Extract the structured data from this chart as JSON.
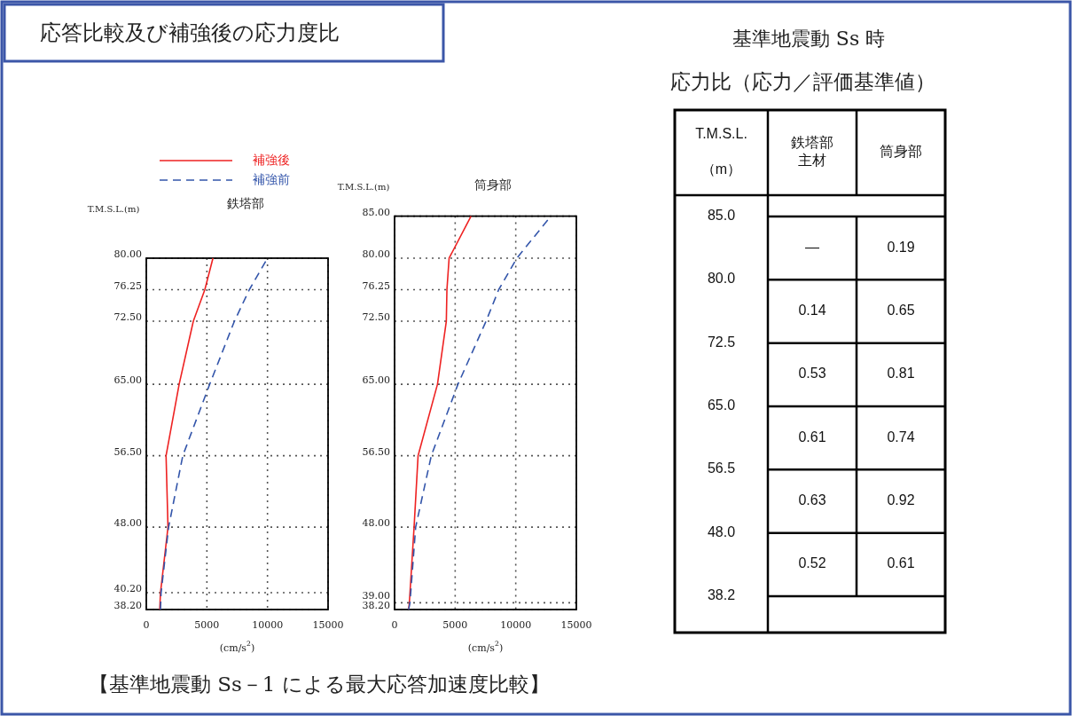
{
  "chart_data": [
    {
      "type": "line",
      "title": "鉄塔部",
      "xlabel": "(cm/s$^{2}$)",
      "ylabel": "T.M.S.L.(m)",
      "annotations": [
        "応答比較及び補強後の応力度比",
        "【基準地震動 Ss－1 による最大応答加速度比較】"
      ],
      "xlim": [
        0,
        15000
      ],
      "xticks": [
        0,
        5000,
        10000,
        15000
      ],
      "ylim": [
        38.2,
        80
      ],
      "yticks": [
        {
          "value": 38.2,
          "label": "38.20"
        },
        {
          "value": 40.2,
          "label": "40.20"
        },
        {
          "value": 48,
          "label": "48.00"
        },
        {
          "value": 56.5,
          "label": "56.50"
        },
        {
          "value": 65,
          "label": "65.00"
        },
        {
          "value": 72.5,
          "label": "72.50"
        },
        {
          "value": 76.25,
          "label": "76.25"
        },
        {
          "value": 80,
          "label": "80.00"
        }
      ],
      "grid": true,
      "legend": "top",
      "marker": "none",
      "series": [
        {
          "name": "補強後",
          "color": "#ee2222",
          "line_style": "solid",
          "x": [
            1110,
            1170,
            1790,
            1630,
            2710,
            3880,
            4830,
            5500
          ],
          "values": [
            38.2,
            40.2,
            48,
            56.5,
            65,
            72.5,
            76.25,
            80
          ]
        },
        {
          "name": "補強前",
          "color": "#3355aa",
          "line_style": "dashed",
          "x": [
            1170,
            1220,
            1840,
            3010,
            5230,
            7270,
            8500,
            10000
          ],
          "values": [
            38.2,
            40.2,
            48,
            56.5,
            65,
            72.5,
            76.25,
            80
          ]
        }
      ]
    },
    {
      "type": "line",
      "title": "筒身部",
      "xlabel": "(cm/s$^{2}$)",
      "ylabel": "T.M.S.L.(m)",
      "xlim": [
        0,
        15000
      ],
      "xticks": [
        0,
        5000,
        10000,
        15000
      ],
      "ylim": [
        38.2,
        85
      ],
      "yticks": [
        {
          "value": 38.2,
          "label": "38.20"
        },
        {
          "value": 39,
          "label": "39.00"
        },
        {
          "value": 48,
          "label": "48.00"
        },
        {
          "value": 56.5,
          "label": "56.50"
        },
        {
          "value": 65,
          "label": "65.00"
        },
        {
          "value": 72.5,
          "label": "72.50"
        },
        {
          "value": 76.25,
          "label": "76.25"
        },
        {
          "value": 80,
          "label": "80.00"
        },
        {
          "value": 85,
          "label": "85.00"
        }
      ],
      "grid": true,
      "marker": "none",
      "series": [
        {
          "color": "#ee2222",
          "line_style": "solid",
          "x": [
            1160,
            1220,
            1610,
            1940,
            3540,
            4270,
            4320,
            4500,
            6310
          ],
          "values": [
            38.2,
            39,
            48,
            56.5,
            65,
            72.5,
            76.25,
            80,
            85
          ]
        },
        {
          "color": "#3355aa",
          "line_style": "dashed",
          "x": [
            1160,
            1270,
            1740,
            3030,
            5230,
            7550,
            8590,
            10090,
            12900
          ],
          "values": [
            38.2,
            39,
            48,
            56.5,
            65,
            72.5,
            76.25,
            80,
            85
          ]
        }
      ]
    },
    {
      "type": "other",
      "title": "基準地震動 Ss 時",
      "subtitle": "応力比（応力／評価基準値）",
      "categories": [
        "T.M.S.L.\n\n（m）",
        "鉄塔部主材",
        "筒身部"
      ],
      "y_categories": [
        "85.0",
        "80.0",
        "72.5",
        "65.0",
        "56.5",
        "48.0",
        "38.2"
      ],
      "cell_labels": [
        [
          "—",
          "0.19"
        ],
        [
          "0.14",
          "0.65"
        ],
        [
          "0.53",
          "0.81"
        ],
        [
          "0.61",
          "0.74"
        ],
        [
          "0.63",
          "0.92"
        ],
        [
          "0.52",
          "0.61"
        ]
      ]
    }
  ]
}
